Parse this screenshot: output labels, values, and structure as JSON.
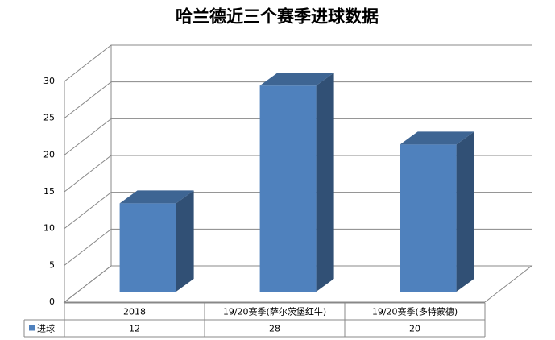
{
  "chart_data": {
    "type": "bar3d",
    "title": "哈兰德近三个赛季进球数据",
    "categories": [
      "2018",
      "19/20赛季(萨尔茨堡红牛)",
      "19/20赛季(多特蒙德)"
    ],
    "series": [
      {
        "name": "进球",
        "color": "#4f81bd",
        "values": [
          12,
          28,
          20
        ]
      }
    ],
    "ylim": [
      0,
      30
    ],
    "yticks": [
      0,
      5,
      10,
      15,
      20,
      25,
      30
    ],
    "grid": true,
    "legend": "table"
  }
}
